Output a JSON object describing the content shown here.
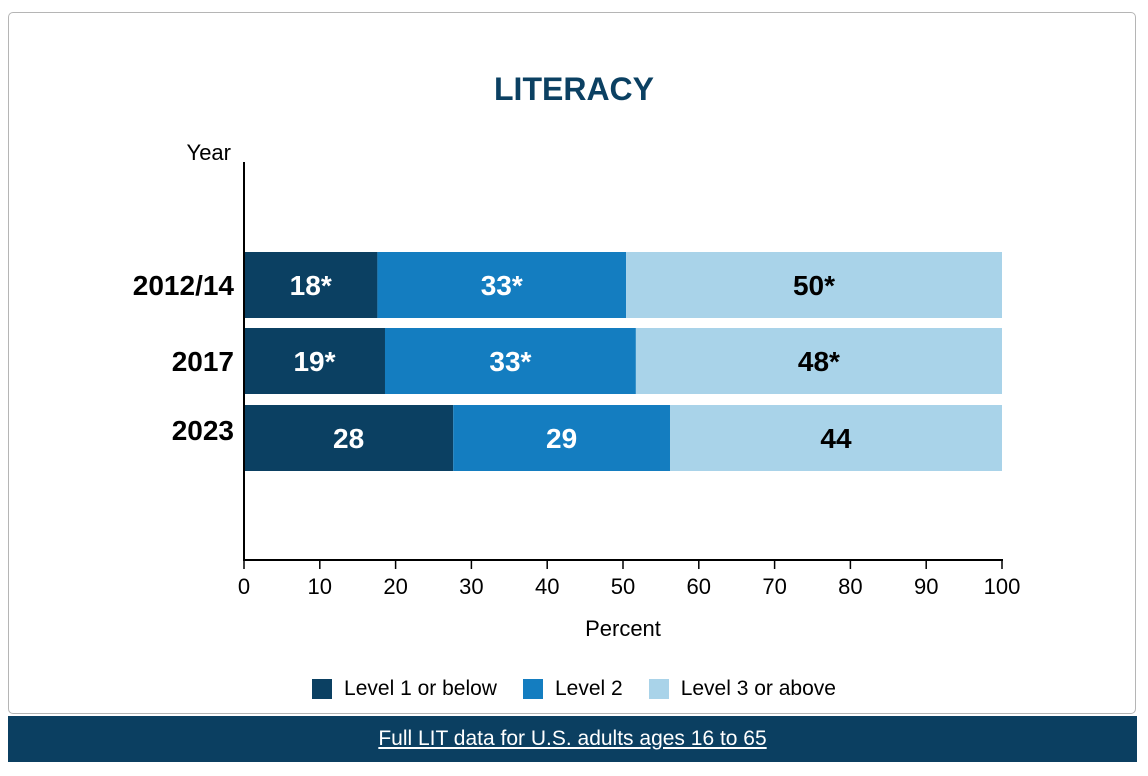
{
  "chart_data": {
    "type": "bar",
    "orientation": "horizontal",
    "stacked": true,
    "title": "LITERACY",
    "ylabel": "Year",
    "xlabel": "Percent",
    "xlim": [
      0,
      100
    ],
    "xticks": [
      "0",
      "10",
      "20",
      "30",
      "40",
      "50",
      "60",
      "70",
      "80",
      "90",
      "100"
    ],
    "grid": false,
    "legend_position": "bottom",
    "categories": [
      "2012/14",
      "2017",
      "2023"
    ],
    "series": [
      {
        "name": "Level 1 or below",
        "color": "#0b4062",
        "values": [
          17.6,
          18.6,
          27.6
        ],
        "labels": [
          "18*",
          "19*",
          "28"
        ],
        "label_color": "#ffffff"
      },
      {
        "name": "Level 2",
        "color": "#147dc0",
        "values": [
          32.8,
          33.1,
          28.6
        ],
        "labels": [
          "33*",
          "33*",
          "29"
        ],
        "label_color": "#ffffff"
      },
      {
        "name": "Level 3 or above",
        "color": "#a9d3e9",
        "values": [
          49.6,
          48.3,
          43.8
        ],
        "labels": [
          "50*",
          "48*",
          "44"
        ],
        "label_color": "#000000"
      }
    ]
  },
  "title_color": "#0b4062",
  "footer": {
    "link_text": "Full LIT data for U.S. adults ages 16 to 65",
    "background": "#0b3f61"
  }
}
